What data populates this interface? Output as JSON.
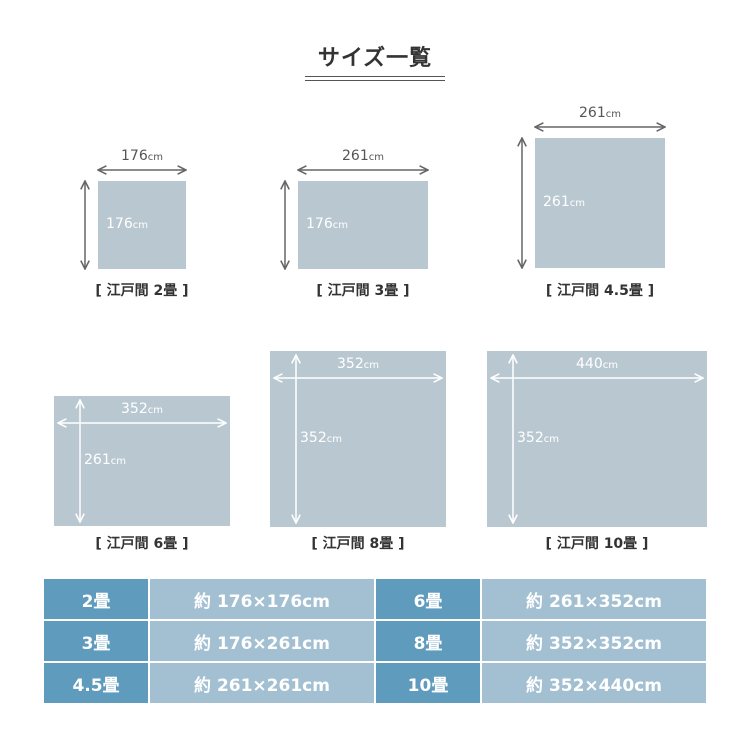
{
  "title": "サイズ一覧",
  "colors": {
    "rug": "#b9c8d0",
    "table_label": "#5e9bbd",
    "table_value": "#a3c0d2",
    "arrow_dark": "#666666",
    "arrow_light": "#ffffff"
  },
  "unit": "cm",
  "items": [
    {
      "caption": "[ 江戸間 2畳 ]",
      "width": "176",
      "depth": "176"
    },
    {
      "caption": "[ 江戸間 3畳 ]",
      "width": "261",
      "depth": "176"
    },
    {
      "caption": "[ 江戸間 4.5畳 ]",
      "width": "261",
      "depth": "261"
    },
    {
      "caption": "[ 江戸間 6畳 ]",
      "width": "352",
      "depth": "261"
    },
    {
      "caption": "[ 江戸間 8畳 ]",
      "width": "352",
      "depth": "352"
    },
    {
      "caption": "[ 江戸間 10畳 ]",
      "width": "440",
      "depth": "352"
    }
  ],
  "table": [
    [
      {
        "label": "2畳",
        "value": "約 176×176cm"
      },
      {
        "label": "6畳",
        "value": "約 261×352cm"
      }
    ],
    [
      {
        "label": "3畳",
        "value": "約 176×261cm"
      },
      {
        "label": "8畳",
        "value": "約 352×352cm"
      }
    ],
    [
      {
        "label": "4.5畳",
        "value": "約 261×261cm"
      },
      {
        "label": "10畳",
        "value": "約 352×440cm"
      }
    ]
  ]
}
